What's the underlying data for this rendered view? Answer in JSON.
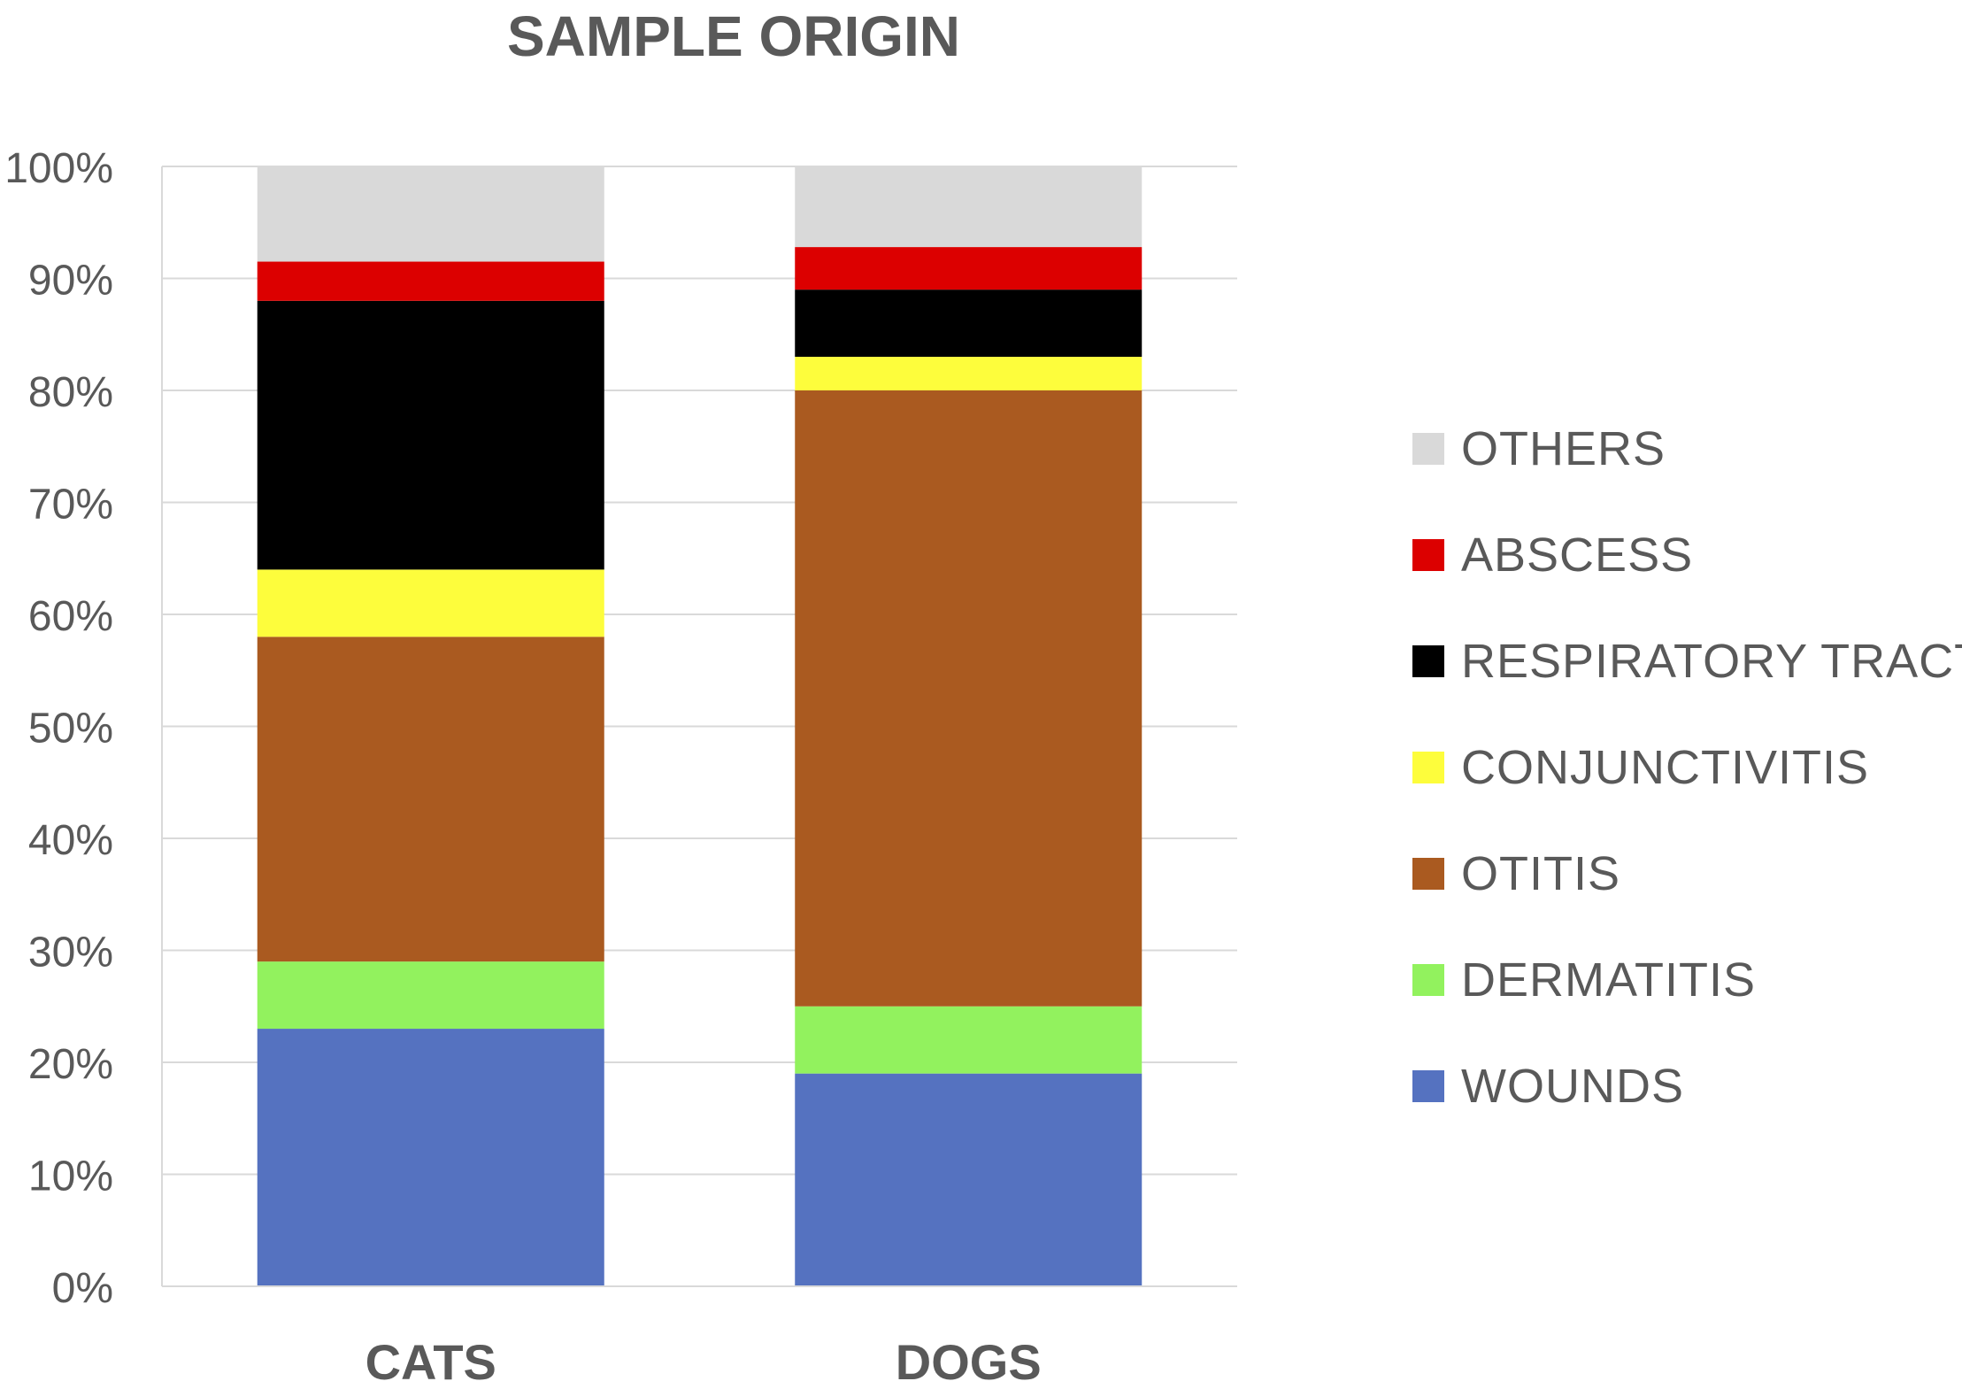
{
  "chart_data": {
    "type": "bar",
    "stacked": true,
    "normalized_percent": true,
    "title": "SAMPLE ORIGIN",
    "xlabel": "",
    "ylabel": "",
    "ylim": [
      0,
      100
    ],
    "y_ticks": [
      "0%",
      "10%",
      "20%",
      "30%",
      "40%",
      "50%",
      "60%",
      "70%",
      "80%",
      "90%",
      "100%"
    ],
    "categories": [
      "CATS",
      "DOGS"
    ],
    "series": [
      {
        "name": "WOUNDS",
        "color": "#5572c0",
        "values": [
          23,
          19
        ]
      },
      {
        "name": "DERMATITIS",
        "color": "#92f25e",
        "values": [
          6,
          6
        ]
      },
      {
        "name": "OTITIS",
        "color": "#aa5a20",
        "values": [
          29,
          55
        ]
      },
      {
        "name": "CONJUNCTIVITIS",
        "color": "#fdfd3c",
        "values": [
          6,
          3
        ]
      },
      {
        "name": "RESPIRATORY TRACT",
        "color": "#000000",
        "values": [
          24,
          6
        ]
      },
      {
        "name": "ABSCESS",
        "color": "#dc0000",
        "values": [
          3.5,
          3.8
        ]
      },
      {
        "name": "OTHERS",
        "color": "#d9d9d9",
        "values": [
          8.5,
          7.2
        ]
      }
    ],
    "grid": true,
    "legend_position": "right"
  }
}
